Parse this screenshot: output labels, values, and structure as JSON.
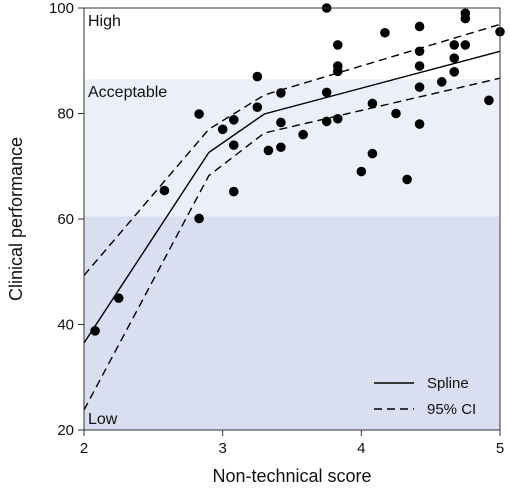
{
  "chart_data": {
    "type": "scatter",
    "title": "",
    "xlabel": "Non-technical score",
    "ylabel": "Clinical performance",
    "xlim": [
      2,
      5
    ],
    "ylim": [
      20,
      100
    ],
    "xticks": [
      2,
      3,
      4,
      5
    ],
    "yticks": [
      20,
      40,
      60,
      80,
      100
    ],
    "bands": [
      {
        "name": "Low",
        "from": 20,
        "to": 60.5,
        "color": "#d9def0"
      },
      {
        "name": "Acceptable",
        "from": 60.5,
        "to": 86.5,
        "color": "#eaeff8"
      },
      {
        "name": "High",
        "from": 86.5,
        "to": 100,
        "color": "#ffffff"
      }
    ],
    "points": [
      [
        2.08,
        38.8
      ],
      [
        2.25,
        45.0
      ],
      [
        2.58,
        65.4
      ],
      [
        2.83,
        60.1
      ],
      [
        2.83,
        79.9
      ],
      [
        3.0,
        77.0
      ],
      [
        3.08,
        65.2
      ],
      [
        3.08,
        74.0
      ],
      [
        3.08,
        78.8
      ],
      [
        3.25,
        81.2
      ],
      [
        3.25,
        87.0
      ],
      [
        3.33,
        73.0
      ],
      [
        3.42,
        73.6
      ],
      [
        3.42,
        78.3
      ],
      [
        3.42,
        83.9
      ],
      [
        3.58,
        76.0
      ],
      [
        3.75,
        78.5
      ],
      [
        3.75,
        84.0
      ],
      [
        3.75,
        100.0
      ],
      [
        3.83,
        79.0
      ],
      [
        3.83,
        88.0
      ],
      [
        3.83,
        89.0
      ],
      [
        3.83,
        93.0
      ],
      [
        4.0,
        69.0
      ],
      [
        4.08,
        72.4
      ],
      [
        4.08,
        81.9
      ],
      [
        4.17,
        95.3
      ],
      [
        4.25,
        80.0
      ],
      [
        4.33,
        67.5
      ],
      [
        4.42,
        78.0
      ],
      [
        4.42,
        85.0
      ],
      [
        4.42,
        89.0
      ],
      [
        4.42,
        91.8
      ],
      [
        4.42,
        96.5
      ],
      [
        4.58,
        86.0
      ],
      [
        4.67,
        87.9
      ],
      [
        4.67,
        90.5
      ],
      [
        4.67,
        93.0
      ],
      [
        4.75,
        93.0
      ],
      [
        4.75,
        98.0
      ],
      [
        4.75,
        99.0
      ],
      [
        4.92,
        82.5
      ],
      [
        5.0,
        95.5
      ]
    ],
    "series": [
      {
        "name": "Spline",
        "style": "solid",
        "x": [
          2.0,
          2.9,
          3.3,
          5.0
        ],
        "y": [
          36.5,
          72.6,
          79.9,
          91.8
        ]
      },
      {
        "name": "95% CI",
        "style": "dashed",
        "x": [
          2.0,
          2.9,
          3.3,
          5.0
        ],
        "y": [
          49.3,
          77.0,
          83.5,
          96.9
        ]
      },
      {
        "name": "95% CI lower",
        "style": "dashed",
        "x": [
          2.0,
          2.9,
          3.3,
          5.0
        ],
        "y": [
          23.8,
          68.2,
          76.3,
          86.7
        ]
      }
    ],
    "legend": {
      "position": "bottom-right",
      "entries": [
        "Spline",
        "95% CI"
      ]
    },
    "grid": false
  }
}
